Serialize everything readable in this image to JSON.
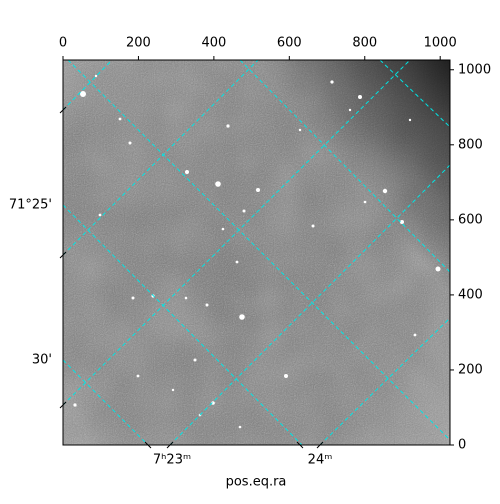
{
  "chart_data": {
    "type": "image",
    "xlabel": "pos.eq.ra",
    "xlim": [
      0,
      1026
    ],
    "xticks": [
      0,
      200,
      400,
      600,
      800,
      1000
    ],
    "ylim": [
      0,
      1026
    ],
    "yticks": [
      0,
      200,
      400,
      600,
      800,
      1000
    ],
    "left_ticks": [
      "71°25'",
      "30'"
    ],
    "bottom_ticks": [
      "7ʰ23ᵐ",
      "24ᵐ"
    ],
    "grid_color": "#00e5e5"
  }
}
